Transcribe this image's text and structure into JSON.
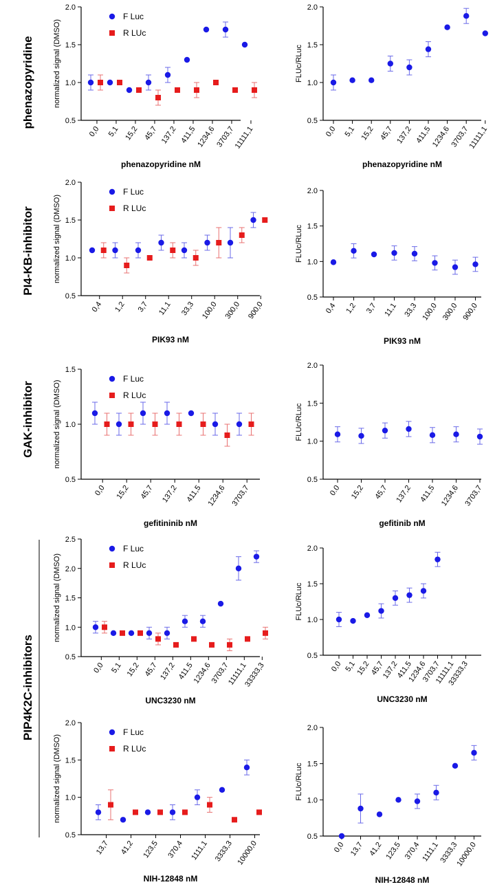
{
  "colors": {
    "fluc": "#1a1ae6",
    "rluc": "#e61c1c",
    "errbar_f": "#6a6ae8",
    "errbar_r": "#e87070",
    "axis": "#000000"
  },
  "row_labels": [
    "phenazopyridine",
    "PI4-KB-inhibitor",
    "GAK-inhibitor",
    "PIP4K2C-inhibitors"
  ],
  "chart_data": [
    {
      "type": "scatter",
      "title": "",
      "xlabel": "phenazopyridine nM",
      "ylabel": "normalized signal (DMSO)",
      "ylim": [
        0.5,
        2.0
      ],
      "yticks": [
        "0.5",
        "1.0",
        "1.5",
        "2.0"
      ],
      "categories": [
        "0,0",
        "5,1",
        "15,2",
        "45,7",
        "137,2",
        "411,5",
        "1234,6",
        "3703,7",
        "11111,1"
      ],
      "legend": [
        "F Luc",
        "R LUc"
      ],
      "series": [
        {
          "name": "F Luc",
          "values": [
            1.0,
            1.0,
            0.9,
            1.0,
            1.1,
            1.3,
            1.7,
            1.7,
            1.5
          ],
          "errors": [
            0.1,
            0,
            0,
            0.1,
            0.1,
            0,
            0,
            0.1,
            0
          ]
        },
        {
          "name": "R LUc",
          "values": [
            1.0,
            1.0,
            0.9,
            0.8,
            0.9,
            0.9,
            1.0,
            0.9,
            0.9
          ],
          "errors": [
            0.1,
            0,
            0,
            0.1,
            0,
            0.1,
            0,
            0,
            0.1
          ]
        }
      ]
    },
    {
      "type": "scatter",
      "title": "",
      "xlabel": "phenazopyridine nM",
      "ylabel": "FLUc/RLuc",
      "ylim": [
        0.5,
        2.0
      ],
      "yticks": [
        "0.5",
        "1.0",
        "1.5",
        "2.0"
      ],
      "categories": [
        "0,0",
        "5,1",
        "15,2",
        "45,7",
        "137,2",
        "411,5",
        "1234,6",
        "3703,7",
        "11111,1"
      ],
      "series": [
        {
          "name": "FLUc/RLuc",
          "values": [
            1.0,
            1.03,
            1.03,
            1.25,
            1.2,
            1.44,
            1.73,
            1.88,
            1.65
          ],
          "errors": [
            0.1,
            0,
            0,
            0.1,
            0.1,
            0.1,
            0,
            0.1,
            0
          ]
        }
      ]
    },
    {
      "type": "scatter",
      "title": "",
      "xlabel": "PIK93 nM",
      "ylabel": "normalized signal (DMSO)",
      "ylim": [
        0.5,
        2.0
      ],
      "yticks": [
        "0.5",
        "1.0",
        "1.5",
        "2.0"
      ],
      "categories": [
        "0,4",
        "1,2",
        "3,7",
        "11,1",
        "33,3",
        "100,0",
        "300,0",
        "900,0"
      ],
      "legend": [
        "F Luc",
        "R LUc"
      ],
      "series": [
        {
          "name": "F Luc",
          "values": [
            1.1,
            1.1,
            1.1,
            1.2,
            1.1,
            1.2,
            1.2,
            1.5
          ],
          "errors": [
            0,
            0.1,
            0.1,
            0.1,
            0.1,
            0.1,
            0.2,
            0.1
          ]
        },
        {
          "name": "R LUc",
          "values": [
            1.1,
            0.9,
            1.0,
            1.1,
            1.0,
            1.2,
            1.3,
            1.5
          ],
          "errors": [
            0.1,
            0.1,
            0,
            0.1,
            0.1,
            0.2,
            0.1,
            0
          ]
        }
      ]
    },
    {
      "type": "scatter",
      "title": "",
      "xlabel": "PIK93 nM",
      "ylabel": "FLUc/RLuc",
      "ylim": [
        0.5,
        2.0
      ],
      "yticks": [
        "0.5",
        "1.0",
        "1.5",
        "2.0"
      ],
      "categories": [
        "0,4",
        "1,2",
        "3,7",
        "11,1",
        "33,3",
        "100,0",
        "300,0",
        "900,0"
      ],
      "series": [
        {
          "name": "FLUc/RLuc",
          "values": [
            0.99,
            1.15,
            1.1,
            1.12,
            1.11,
            0.98,
            0.92,
            0.96
          ],
          "errors": [
            0,
            0.1,
            0,
            0.1,
            0.1,
            0.1,
            0.1,
            0.1
          ]
        }
      ]
    },
    {
      "type": "scatter",
      "title": "",
      "xlabel": "gefitininib nM",
      "ylabel": "normalized signal (DMSO)",
      "ylim": [
        0.5,
        1.5
      ],
      "yticks": [
        "0.5",
        "1.0",
        "1.5"
      ],
      "categories": [
        "0,0",
        "15,2",
        "45,7",
        "137,2",
        "411,5",
        "1234,6",
        "3703,7"
      ],
      "legend": [
        "F Luc",
        "R LUc"
      ],
      "series": [
        {
          "name": "F Luc",
          "values": [
            1.1,
            1.0,
            1.1,
            1.1,
            1.1,
            1.0,
            1.0
          ],
          "errors": [
            0.1,
            0.1,
            0.1,
            0.1,
            0,
            0.1,
            0.1
          ]
        },
        {
          "name": "R LUc",
          "values": [
            1.0,
            1.0,
            1.0,
            1.0,
            1.0,
            0.9,
            1.0
          ],
          "errors": [
            0.1,
            0.1,
            0.1,
            0.1,
            0.1,
            0.1,
            0.1
          ]
        }
      ]
    },
    {
      "type": "scatter",
      "title": "",
      "xlabel": "gefitinib nM",
      "ylabel": "FLUc/RLuc",
      "ylim": [
        0.5,
        2.0
      ],
      "yticks": [
        "0.5",
        "1.0",
        "1.5",
        "2.0"
      ],
      "categories": [
        "0.0",
        "15,2",
        "45,7",
        "137,2",
        "411,5",
        "1234,6",
        "3703,7"
      ],
      "series": [
        {
          "name": "FLUc/RLuc",
          "values": [
            1.09,
            1.07,
            1.14,
            1.16,
            1.08,
            1.09,
            1.06
          ],
          "errors": [
            0.1,
            0.1,
            0.1,
            0.1,
            0.1,
            0.1,
            0.1
          ]
        }
      ]
    },
    {
      "type": "scatter",
      "title": "",
      "xlabel": "UNC3230 nM",
      "ylabel": "normalized signal (DMSO)",
      "ylim": [
        0.5,
        2.5
      ],
      "yticks": [
        "0.5",
        "1.0",
        "1.5",
        "2.0",
        "2.5"
      ],
      "categories": [
        "0,0",
        "5,1",
        "15,2",
        "45,7",
        "137,2",
        "411,5",
        "1234,6",
        "3703,7",
        "11111,1",
        "33333,3"
      ],
      "legend": [
        "F Luc",
        "R LUc"
      ],
      "series": [
        {
          "name": "F Luc",
          "values": [
            1.0,
            0.9,
            0.9,
            0.9,
            0.9,
            1.1,
            1.1,
            1.4,
            2.0,
            2.2
          ],
          "errors": [
            0.1,
            0,
            0,
            0.1,
            0.1,
            0.1,
            0.1,
            0,
            0.2,
            0.1
          ]
        },
        {
          "name": "R LUc",
          "values": [
            1.0,
            0.9,
            0.9,
            0.8,
            0.7,
            0.8,
            0.7,
            0.7,
            0.8,
            0.9
          ],
          "errors": [
            0.1,
            0,
            0,
            0.1,
            0,
            0,
            0,
            0.1,
            0,
            0.1
          ]
        }
      ]
    },
    {
      "type": "scatter",
      "title": "",
      "xlabel": "UNC3230 nM",
      "ylabel": "FLUc/RLuc",
      "ylim": [
        0.5,
        2.0
      ],
      "yticks": [
        "0.5",
        "1.0",
        "1.5",
        "2.0"
      ],
      "categories": [
        "0,0",
        "5,1",
        "15,2",
        "45,7",
        "137,2",
        "411,5",
        "1234,6",
        "3703,7",
        "11111,1",
        "33333,3"
      ],
      "series": [
        {
          "name": "FLUc/RLuc",
          "values": [
            1.0,
            0.98,
            1.06,
            1.12,
            1.3,
            1.34,
            1.4,
            1.84,
            null,
            null
          ],
          "errors": [
            0.1,
            0,
            0,
            0.1,
            0.1,
            0.1,
            0.1,
            0.1,
            0,
            0
          ]
        }
      ]
    },
    {
      "type": "scatter",
      "title": "",
      "xlabel": "NIH-12848 nM",
      "ylabel": "normalized signal (DMSO)",
      "ylim": [
        0.5,
        2.0
      ],
      "yticks": [
        "0.5",
        "1.0",
        "1.5",
        "2.0"
      ],
      "categories": [
        "13,7",
        "41,2",
        "123,5",
        "370,4",
        "1111,1",
        "3333,3",
        "10000,0"
      ],
      "legend": [
        "F Luc",
        "R LUc"
      ],
      "series": [
        {
          "name": "F Luc",
          "values": [
            0.8,
            0.7,
            0.8,
            0.8,
            1.0,
            1.1,
            1.4
          ],
          "errors": [
            0.1,
            0,
            0,
            0.1,
            0.1,
            0,
            0.1
          ]
        },
        {
          "name": "R LUc",
          "values": [
            0.9,
            0.8,
            0.8,
            0.8,
            0.9,
            0.7,
            0.8
          ],
          "errors": [
            0.2,
            0,
            0,
            0,
            0.1,
            0,
            0
          ]
        }
      ]
    },
    {
      "type": "scatter",
      "title": "",
      "xlabel": "NIH-12848 nM",
      "ylabel": "FLUc/RLuc",
      "ylim": [
        0.5,
        2.0
      ],
      "yticks": [
        "0.5",
        "1.0",
        "1.5",
        "2.0"
      ],
      "categories": [
        "0,0",
        "13,7",
        "41,2",
        "123,5",
        "370,4",
        "1111,1",
        "3333,3",
        "10000,0"
      ],
      "series": [
        {
          "name": "FLUc/RLuc",
          "values": [
            0.5,
            0.88,
            0.8,
            1.0,
            0.98,
            1.1,
            1.47,
            1.65
          ],
          "errors": [
            0,
            0.2,
            0,
            0,
            0.1,
            0.1,
            0,
            0.1
          ]
        }
      ]
    }
  ]
}
